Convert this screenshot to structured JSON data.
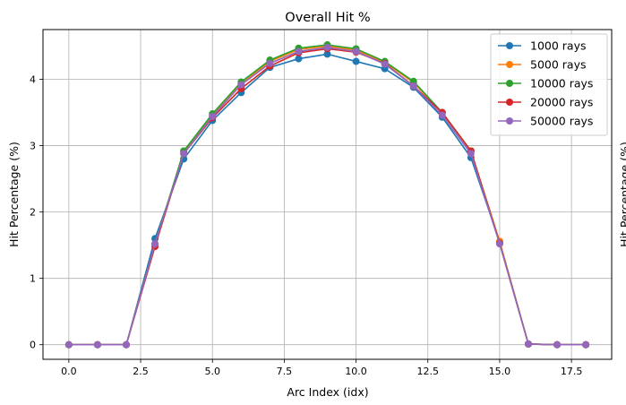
{
  "chart_data": {
    "type": "line",
    "title": "Overall Hit %",
    "xlabel": "Arc Index (idx)",
    "ylabel": "Hit Percentage (%)",
    "clipped_right_label": "Hit Percentage (%)",
    "xlim": [
      -0.9,
      18.9
    ],
    "ylim": [
      -0.22,
      4.75
    ],
    "x_ticks": [
      0.0,
      2.5,
      5.0,
      7.5,
      10.0,
      12.5,
      15.0,
      17.5
    ],
    "x_tick_labels": [
      "0.0",
      "2.5",
      "5.0",
      "7.5",
      "10.0",
      "12.5",
      "15.0",
      "17.5"
    ],
    "y_ticks": [
      0,
      1,
      2,
      3,
      4
    ],
    "y_tick_labels": [
      "0",
      "1",
      "2",
      "3",
      "4"
    ],
    "grid": true,
    "legend_position": "top-right",
    "x": [
      0,
      1,
      2,
      3,
      4,
      5,
      6,
      7,
      8,
      9,
      10,
      11,
      12,
      13,
      14,
      15,
      16,
      17,
      18
    ],
    "series": [
      {
        "name": "1000 rays",
        "color": "#1f77b4",
        "values": [
          0,
          0,
          0,
          1.6,
          2.8,
          3.38,
          3.8,
          4.18,
          4.31,
          4.38,
          4.27,
          4.16,
          3.88,
          3.43,
          2.82,
          1.55,
          0.01,
          0,
          0
        ]
      },
      {
        "name": "5000 rays",
        "color": "#ff7f0e",
        "values": [
          0,
          0,
          0,
          1.52,
          2.9,
          3.45,
          3.93,
          4.27,
          4.45,
          4.5,
          4.44,
          4.26,
          3.95,
          3.5,
          2.92,
          1.56,
          0.01,
          0,
          0
        ]
      },
      {
        "name": "10000 rays",
        "color": "#2ca02c",
        "values": [
          0,
          0,
          0,
          1.52,
          2.92,
          3.48,
          3.96,
          4.29,
          4.47,
          4.52,
          4.46,
          4.27,
          3.97,
          3.5,
          2.92,
          1.53,
          0.01,
          0,
          0
        ]
      },
      {
        "name": "20000 rays",
        "color": "#d62728",
        "values": [
          0,
          0,
          0,
          1.48,
          2.88,
          3.42,
          3.86,
          4.2,
          4.4,
          4.46,
          4.41,
          4.24,
          3.9,
          3.5,
          2.92,
          1.53,
          0.01,
          0,
          0
        ]
      },
      {
        "name": "50000 rays",
        "color": "#9467bd",
        "values": [
          0,
          0,
          0,
          1.52,
          2.88,
          3.44,
          3.92,
          4.24,
          4.42,
          4.48,
          4.42,
          4.23,
          3.9,
          3.46,
          2.88,
          1.52,
          0.01,
          0,
          0
        ]
      }
    ]
  }
}
